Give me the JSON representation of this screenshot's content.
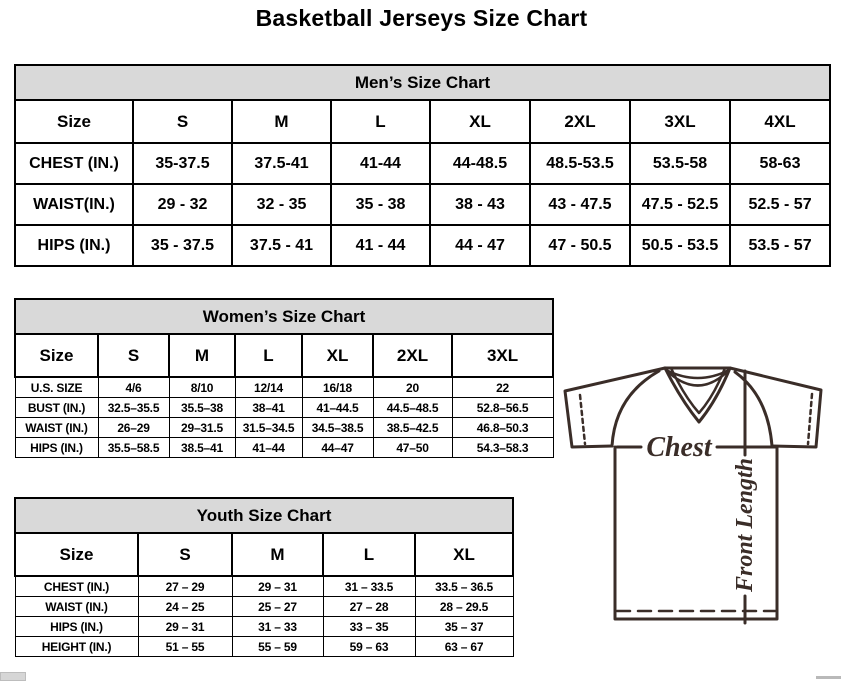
{
  "page_title": "Basketball Jerseys Size Chart",
  "colors": {
    "table_header_bg": "#d9d9d9",
    "table_border": "#000000",
    "diagram_line": "#3a2d28"
  },
  "tables": {
    "men": {
      "title": "Men’s Size Chart",
      "columns": [
        "Size",
        "S",
        "M",
        "L",
        "XL",
        "2XL",
        "3XL",
        "4XL"
      ],
      "rows": [
        [
          "CHEST (IN.)",
          "35-37.5",
          "37.5-41",
          "41-44",
          "44-48.5",
          "48.5-53.5",
          "53.5-58",
          "58-63"
        ],
        [
          "WAIST(IN.)",
          "29 - 32",
          "32 - 35",
          "35 - 38",
          "38 - 43",
          "43 - 47.5",
          "47.5 - 52.5",
          "52.5 - 57"
        ],
        [
          "HIPS (IN.)",
          "35 - 37.5",
          "37.5 - 41",
          "41 - 44",
          "44 - 47",
          "47 - 50.5",
          "50.5 - 53.5",
          "53.5 - 57"
        ]
      ]
    },
    "women": {
      "title": "Women’s Size Chart",
      "columns": [
        "Size",
        "S",
        "M",
        "L",
        "XL",
        "2XL",
        "3XL"
      ],
      "rows": [
        [
          "U.S. SIZE",
          "4/6",
          "8/10",
          "12/14",
          "16/18",
          "20",
          "22"
        ],
        [
          "BUST (IN.)",
          "32.5–35.5",
          "35.5–38",
          "38–41",
          "41–44.5",
          "44.5–48.5",
          "52.8–56.5"
        ],
        [
          "WAIST (IN.)",
          "26–29",
          "29–31.5",
          "31.5–34.5",
          "34.5–38.5",
          "38.5–42.5",
          "46.8–50.3"
        ],
        [
          "HIPS (IN.)",
          "35.5–58.5",
          "38.5–41",
          "41–44",
          "44–47",
          "47–50",
          "54.3–58.3"
        ]
      ]
    },
    "youth": {
      "title": "Youth Size Chart",
      "columns": [
        "Size",
        "S",
        "M",
        "L",
        "XL"
      ],
      "rows": [
        [
          "CHEST (IN.)",
          "27 – 29",
          "29 – 31",
          "31 – 33.5",
          "33.5 – 36.5"
        ],
        [
          "WAIST (IN.)",
          "24 – 25",
          "25 – 27",
          "27 – 28",
          "28 – 29.5"
        ],
        [
          "HIPS (IN.)",
          "29 – 31",
          "31 – 33",
          "33 – 35",
          "35 – 37"
        ],
        [
          "HEIGHT (IN.)",
          "51 – 55",
          "55 – 59",
          "59 – 63",
          "63 – 67"
        ]
      ]
    }
  },
  "diagram": {
    "chest_label": "Chest",
    "front_length_label": "Front Length"
  }
}
